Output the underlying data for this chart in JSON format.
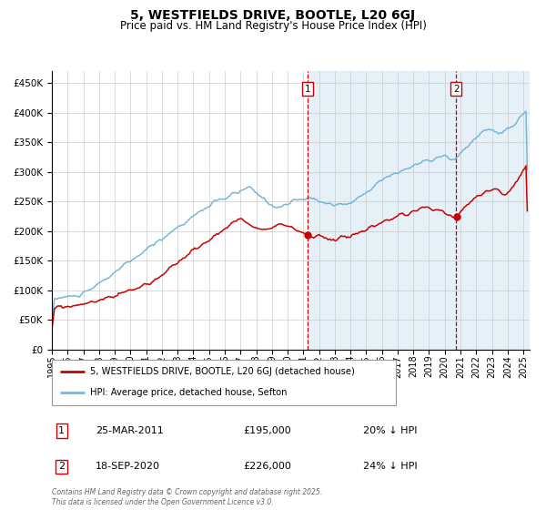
{
  "title": "5, WESTFIELDS DRIVE, BOOTLE, L20 6GJ",
  "subtitle": "Price paid vs. HM Land Registry's House Price Index (HPI)",
  "footnote": "Contains HM Land Registry data © Crown copyright and database right 2025.\nThis data is licensed under the Open Government Licence v3.0.",
  "legend_line1": "5, WESTFIELDS DRIVE, BOOTLE, L20 6GJ (detached house)",
  "legend_line2": "HPI: Average price, detached house, Sefton",
  "annotation1_date": "25-MAR-2011",
  "annotation1_price": "£195,000",
  "annotation1_hpi": "20% ↓ HPI",
  "annotation2_date": "18-SEP-2020",
  "annotation2_price": "£226,000",
  "annotation2_hpi": "24% ↓ HPI",
  "hpi_color": "#7ab5d8",
  "price_color": "#cc0000",
  "bg_shade_color": "#daeaf5",
  "vline_color": "#cc0000",
  "ylim": [
    0,
    470000
  ],
  "yticks": [
    0,
    50000,
    100000,
    150000,
    200000,
    250000,
    300000,
    350000,
    400000,
    450000
  ],
  "year_start": 1995,
  "year_end": 2025,
  "marker1_year": 2011.25,
  "marker2_year": 2020.72,
  "marker1_value": 195000,
  "marker2_value": 226000
}
